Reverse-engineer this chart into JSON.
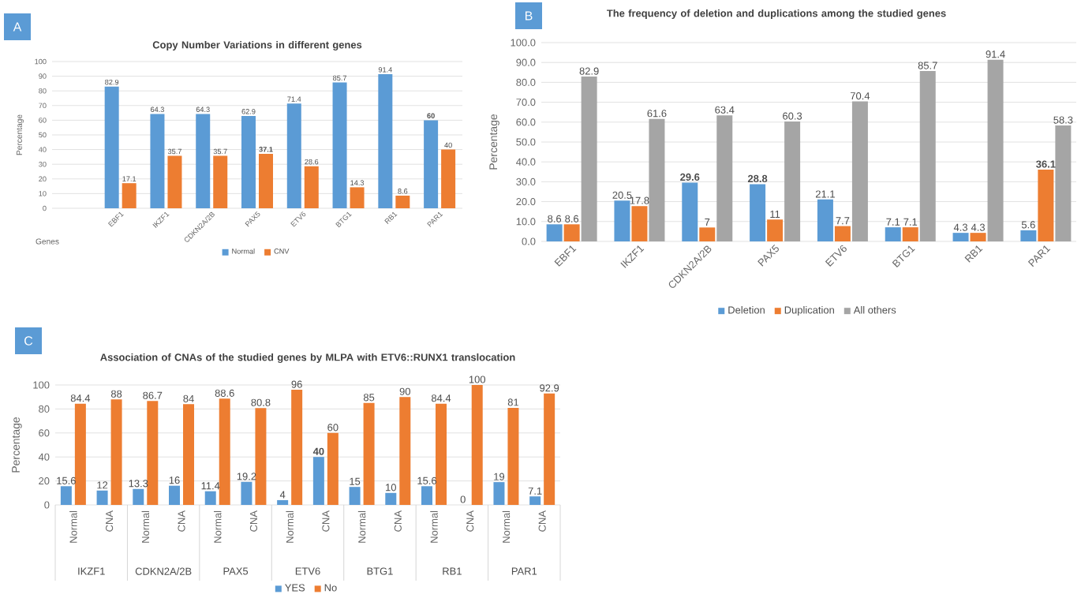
{
  "chart_data": [
    {
      "type": "bar",
      "title": "Copy Number Variations in different genes",
      "xlabel": "Genes",
      "ylabel": "Percentage",
      "annotations": [
        "A"
      ],
      "categories": [
        "EBF1",
        "IKZF1",
        "CDKN2A/2B",
        "PAX5",
        "ETV6",
        "BTG1",
        "RB1",
        "PAR1"
      ],
      "series": [
        {
          "name": "Normal",
          "color": "#5b9bd5",
          "values": [
            82.9,
            64.3,
            64.3,
            62.9,
            71.4,
            85.7,
            91.4,
            60
          ],
          "value_labels": [
            "82.9",
            "64.3",
            "64.3",
            "62.9",
            "71.4",
            "85.7",
            "91.4",
            "**60**"
          ]
        },
        {
          "name": "CNV",
          "color": "#ed7d31",
          "values": [
            17.1,
            35.7,
            35.7,
            37.1,
            28.6,
            14.3,
            8.6,
            40
          ],
          "value_labels": [
            "17.1",
            "35.7",
            "35.7",
            "**37.1**",
            "28.6",
            "14.3",
            "8.6",
            "40"
          ]
        }
      ],
      "ylim": [
        0,
        100
      ],
      "yticks": [
        0,
        10,
        20,
        30,
        40,
        50,
        60,
        70,
        80,
        90,
        100
      ],
      "grid": "y",
      "legend": "bottom"
    },
    {
      "type": "bar",
      "title": "The frequency of deletion and duplications among the studied genes",
      "ylabel": "Percentage",
      "annotations": [
        "B"
      ],
      "categories": [
        "EBF1",
        "IKZF1",
        "CDKN2A/2B",
        "PAX5",
        "ETV6",
        "BTG1",
        "RB1",
        "PAR1"
      ],
      "series": [
        {
          "name": "Deletion",
          "color": "#5b9bd5",
          "values": [
            8.6,
            20.5,
            29.6,
            28.8,
            21.1,
            7.1,
            4.3,
            5.6
          ],
          "value_labels": [
            "8.6",
            "20.5",
            "**29.6**",
            "**28.8**",
            "21.1",
            "7.1",
            "4.3",
            "5.6"
          ]
        },
        {
          "name": "Duplication",
          "color": "#ed7d31",
          "values": [
            8.6,
            17.8,
            7,
            11,
            7.7,
            7.1,
            4.3,
            36.1
          ],
          "value_labels": [
            "8.6",
            "17.8",
            "7",
            "11",
            "7.7",
            "7.1",
            "4.3",
            "**36.1**"
          ]
        },
        {
          "name": "All others",
          "color": "#a5a5a5",
          "values": [
            82.9,
            61.6,
            63.4,
            60.3,
            70.4,
            85.7,
            91.4,
            58.3
          ],
          "value_labels": [
            "82.9",
            "61.6",
            "63.4",
            "60.3",
            "70.4",
            "85.7",
            "91.4",
            "58.3"
          ]
        }
      ],
      "ylim": [
        0,
        100
      ],
      "yticks": [
        {
          "value": 0,
          "label": "0.0"
        },
        {
          "value": 10,
          "label": "10.0"
        },
        {
          "value": 20,
          "label": "20.0"
        },
        {
          "value": 30,
          "label": "30.0"
        },
        {
          "value": 40,
          "label": "40.0"
        },
        {
          "value": 50,
          "label": "50.0"
        },
        {
          "value": 60,
          "label": "60.0"
        },
        {
          "value": 70,
          "label": "70.0"
        },
        {
          "value": 80,
          "label": "80.0"
        },
        {
          "value": 90,
          "label": "90.0"
        },
        {
          "value": 100,
          "label": "100.0"
        }
      ],
      "grid": "y",
      "legend": "bottom"
    },
    {
      "type": "bar",
      "title": "Association of CNAs of the studied genes by MLPA with  ETV6::RUNX1 translocation",
      "ylabel": "Percentage",
      "annotations": [
        "C",
        "IKZF1",
        "CDKN2A/2B",
        "PAX5",
        "ETV6",
        "BTG1",
        "RB1",
        "PAR1"
      ],
      "categories": [
        "Normal",
        "CNA",
        "Normal",
        "CNA",
        "Normal",
        "CNA",
        "Normal",
        "CNA",
        "Normal",
        "CNA",
        "Normal",
        "CNA",
        "Normal",
        "CNA"
      ],
      "series": [
        {
          "name": "YES",
          "color": "#5b9bd5",
          "values": [
            15.6,
            12,
            13.3,
            16,
            11.4,
            19.2,
            4,
            40,
            15,
            10,
            15.6,
            0,
            19,
            7.1
          ],
          "value_labels": [
            "15.6",
            "12",
            "13.3",
            "16",
            "11.4",
            "19.2",
            "4",
            "**40**",
            "15",
            "10",
            "15.6",
            "0",
            "19",
            "7.1"
          ]
        },
        {
          "name": "No",
          "color": "#ed7d31",
          "values": [
            84.4,
            88,
            86.7,
            84,
            88.6,
            80.8,
            96,
            60,
            85,
            90,
            84.4,
            100,
            81,
            92.9
          ],
          "value_labels": [
            "84.4",
            "88",
            "86.7",
            "84",
            "88.6",
            "80.8",
            "96",
            "60",
            "85",
            "90",
            "84.4",
            "100",
            "81",
            "92.9"
          ]
        }
      ],
      "ylim": [
        0,
        100
      ],
      "yticks": [
        0,
        20,
        40,
        60,
        80,
        100
      ],
      "grid": "y",
      "legend": "bottom"
    }
  ]
}
